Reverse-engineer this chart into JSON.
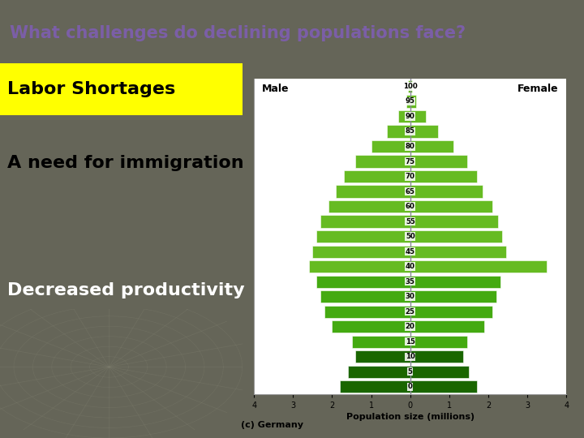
{
  "title": "What challenges do declining populations face?",
  "title_color": "#7B5EA7",
  "title_bg": "#BEBEBE",
  "slide_bg": "#656558",
  "left_upper_bg": "#F0EAD0",
  "bullet1": "Labor Shortages",
  "bullet1_bg": "#FFFF00",
  "bullet1_color": "#000000",
  "bullet2": "A need for immigration",
  "bullet2_bg": "#F0EAD0",
  "bullet2_color": "#000000",
  "bullet3": "Decreased productivity",
  "bullet3_bg": "#111111",
  "bullet3_color": "#FFFFFF",
  "pyramid_title_left": "Male",
  "pyramid_title_right": "Female",
  "pyramid_caption": "(c) Germany",
  "pyramid_xlabel": "Population size (millions)",
  "pyramid_bg": "#DDEEFF",
  "pyramid_inner_bg": "#FFFFFF",
  "age_labels": [
    0,
    5,
    10,
    15,
    20,
    25,
    30,
    35,
    40,
    45,
    50,
    55,
    60,
    65,
    70,
    75,
    80,
    85,
    90,
    95,
    100
  ],
  "male_values": [
    1.8,
    1.6,
    1.4,
    1.5,
    2.0,
    2.2,
    2.3,
    2.4,
    2.6,
    2.5,
    2.4,
    2.3,
    2.1,
    1.9,
    1.7,
    1.4,
    1.0,
    0.6,
    0.3,
    0.1,
    0.05
  ],
  "female_values": [
    1.7,
    1.5,
    1.35,
    1.45,
    1.9,
    2.1,
    2.2,
    2.3,
    3.5,
    2.45,
    2.35,
    2.25,
    2.1,
    1.85,
    1.7,
    1.45,
    1.1,
    0.7,
    0.4,
    0.15,
    0.05
  ],
  "bar_color_light": "#66BB22",
  "bar_color_mid": "#44AA11",
  "bar_color_dark": "#1A6600",
  "font_size_title": 15,
  "font_size_bullets": 16,
  "font_size_pyramid": 8,
  "web_color": "#888877",
  "web_alpha": 0.25
}
